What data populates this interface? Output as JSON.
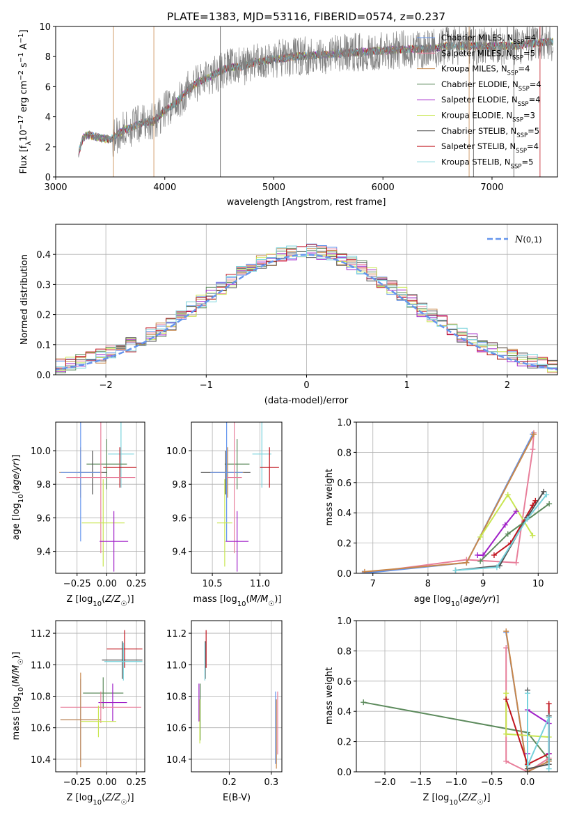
{
  "colors": [
    "#6495ed",
    "#e87f9b",
    "#c8874a",
    "#5c8a5c",
    "#a020c8",
    "#c8e650",
    "#505050",
    "#c0141e",
    "#78d2dc"
  ],
  "chart_data": [
    {
      "type": "line",
      "id": "spectrum",
      "title": "PLATE=1383, MJD=53116, FIBERID=0574, z=0.237",
      "xlabel": "wavelength [Angstrom, rest frame]",
      "ylabel_parts": [
        "Flux [f",
        "λ",
        "10",
        "−17",
        " erg cm",
        "−2",
        " s",
        "−1",
        " A",
        "−1",
        "]"
      ],
      "xlim": [
        3000,
        7600
      ],
      "ylim": [
        0,
        10
      ],
      "xticks": [
        "3000",
        "4000",
        "5000",
        "6000",
        "7000"
      ],
      "yticks": [
        "0",
        "2",
        "4",
        "6",
        "8",
        "10"
      ],
      "observed": {
        "wavelength": [
          3210,
          3250,
          3300,
          3400,
          3500,
          3600,
          3700,
          3800,
          3900,
          4000,
          4100,
          4200,
          4300,
          4400,
          4500,
          4600,
          4700,
          4800,
          4900,
          5000,
          5200,
          5400,
          5600,
          5800,
          6000,
          6200,
          6400,
          6600,
          6800,
          7000,
          7200,
          7400,
          7550
        ],
        "flux": [
          1.6,
          2.6,
          2.8,
          2.6,
          2.5,
          3.0,
          3.3,
          3.6,
          3.7,
          4.4,
          4.9,
          5.7,
          6.3,
          6.6,
          7.0,
          7.3,
          7.3,
          7.6,
          7.7,
          7.8,
          8.0,
          8.1,
          8.2,
          8.3,
          8.4,
          8.5,
          8.5,
          8.7,
          8.7,
          8.7,
          8.7,
          8.9,
          9.0
        ]
      },
      "series": [
        {
          "name": "Chabrier MILES, N",
          "sub": "SSP",
          "n": "=4"
        },
        {
          "name": "Salpeter MILES, N",
          "sub": "SSP",
          "n": "=5"
        },
        {
          "name": "Kroupa MILES, N",
          "sub": "SSP",
          "n": "=4"
        },
        {
          "name": "Chabrier ELODIE, N",
          "sub": "SSP",
          "n": "=4"
        },
        {
          "name": "Salpeter ELODIE, N",
          "sub": "SSP",
          "n": "=4"
        },
        {
          "name": "Kroupa ELODIE, N",
          "sub": "SSP",
          "n": "=3"
        },
        {
          "name": "Chabrier STELIB, N",
          "sub": "SSP",
          "n": "=5"
        },
        {
          "name": "Salpeter STELIB, N",
          "sub": "SSP",
          "n": "=4"
        },
        {
          "name": "Kroupa STELIB, N",
          "sub": "SSP",
          "n": "=5"
        }
      ],
      "legend": "top-right",
      "grid": false
    },
    {
      "type": "histogram",
      "id": "residuals",
      "xlabel": "(data-model)/error",
      "ylabel": "Normed distribution",
      "xlim": [
        -2.5,
        2.5
      ],
      "ylim": [
        0,
        0.5
      ],
      "xticks": [
        "−2",
        "−1",
        "0",
        "1",
        "2"
      ],
      "xtick_values": [
        -2,
        -1,
        0,
        1,
        2
      ],
      "yticks": [
        "0.0",
        "0.1",
        "0.2",
        "0.3",
        "0.4"
      ],
      "ytick_values": [
        0,
        0.1,
        0.2,
        0.3,
        0.4
      ],
      "bin_width": 0.1,
      "reference_curve": {
        "name": "N(0,1)",
        "mean": 0,
        "sigma": 1,
        "style": "dashed"
      },
      "legend": "top-right",
      "grid": true
    },
    {
      "type": "scatter",
      "id": "age-vs-Z",
      "xlabel": "Z [log10(Z/Z☉)]",
      "ylabel": "age [log10(age/yr)]",
      "xlim": [
        -0.43,
        0.32
      ],
      "ylim": [
        9.27,
        10.17
      ],
      "xticks": [
        "−0.25",
        "0.00",
        "0.25"
      ],
      "xtick_values": [
        -0.25,
        0,
        0.25
      ],
      "yticks": [
        "9.4",
        "9.6",
        "9.8",
        "10.0"
      ],
      "ytick_values": [
        9.4,
        9.6,
        9.8,
        10.0
      ],
      "points": [
        {
          "x": 0.12,
          "y": 9.98,
          "xerr": 0.11,
          "yerr": 0.2,
          "series": 8
        },
        {
          "x": 0.11,
          "y": 9.9,
          "xerr": 0.14,
          "yerr": 0.12,
          "series": 7
        },
        {
          "x": 0.0,
          "y": 9.92,
          "xerr": 0.17,
          "yerr": 0.15,
          "series": 3
        },
        {
          "x": -0.12,
          "y": 9.87,
          "xerr": 0.12,
          "yerr": 0.13,
          "series": 6
        },
        {
          "x": -0.22,
          "y": 9.87,
          "xerr": 0.18,
          "yerr": 0.15,
          "series": 2
        },
        {
          "x": -0.22,
          "y": 9.87,
          "xerr": 0.17,
          "yerr": 0.41,
          "series": 0
        },
        {
          "x": -0.05,
          "y": 9.84,
          "xerr": 0.29,
          "yerr": 0.45,
          "series": 1
        },
        {
          "x": -0.03,
          "y": 9.57,
          "xerr": 0.18,
          "yerr": 0.26,
          "series": 5
        },
        {
          "x": 0.06,
          "y": 9.46,
          "xerr": 0.12,
          "yerr": 0.18,
          "series": 4
        }
      ],
      "grid": true
    },
    {
      "type": "scatter",
      "id": "age-vs-mass",
      "xlabel": "mass [log10(M/M☉)]",
      "ylabel": "",
      "xlim": [
        10.28,
        11.23
      ],
      "ylim": [
        9.27,
        10.17
      ],
      "xticks": [
        "10.5",
        "11.0"
      ],
      "xtick_values": [
        10.5,
        11.0
      ],
      "yticks": [
        "9.4",
        "9.6",
        "9.8",
        "10.0"
      ],
      "ytick_values": [
        9.4,
        9.6,
        9.8,
        10.0
      ],
      "points": [
        {
          "x": 11.02,
          "y": 9.98,
          "xerr": 0.1,
          "yerr": 0.2,
          "series": 8
        },
        {
          "x": 11.1,
          "y": 9.9,
          "xerr": 0.1,
          "yerr": 0.12,
          "series": 7
        },
        {
          "x": 10.76,
          "y": 9.92,
          "xerr": 0.13,
          "yerr": 0.15,
          "series": 3
        },
        {
          "x": 10.64,
          "y": 9.87,
          "xerr": 0.26,
          "yerr": 0.13,
          "series": 6
        },
        {
          "x": 10.66,
          "y": 9.87,
          "xerr": 0.17,
          "yerr": 0.15,
          "series": 2
        },
        {
          "x": 10.65,
          "y": 9.87,
          "xerr": 0.17,
          "yerr": 0.41,
          "series": 0
        },
        {
          "x": 10.73,
          "y": 9.84,
          "xerr": 0.08,
          "yerr": 0.45,
          "series": 1
        },
        {
          "x": 10.63,
          "y": 9.57,
          "xerr": 0.08,
          "yerr": 0.26,
          "series": 5
        },
        {
          "x": 10.76,
          "y": 9.46,
          "xerr": 0.12,
          "yerr": 0.18,
          "series": 4
        }
      ],
      "grid": true
    },
    {
      "type": "line",
      "id": "mass-weight-vs-age",
      "xlabel": "age [log10(age/yr)]",
      "ylabel": "mass weight",
      "xlim": [
        6.7,
        10.35
      ],
      "ylim": [
        0,
        1
      ],
      "xticks": [
        "7",
        "8",
        "9",
        "10"
      ],
      "xtick_values": [
        7,
        8,
        9,
        10
      ],
      "yticks": [
        "0.0",
        "0.2",
        "0.4",
        "0.6",
        "0.8",
        "1.0"
      ],
      "ytick_values": [
        0,
        0.2,
        0.4,
        0.6,
        0.8,
        1.0
      ],
      "series": [
        {
          "series": 1,
          "x": [
            6.82,
            8.7,
            9.6,
            9.9,
            9.92
          ],
          "y": [
            0.0,
            0.09,
            0.07,
            0.82,
            0.93
          ]
        },
        {
          "series": 0,
          "x": [
            6.82,
            8.7,
            9.9
          ],
          "y": [
            0.0,
            0.07,
            0.92
          ]
        },
        {
          "series": 2,
          "x": [
            6.85,
            8.7,
            9.92
          ],
          "y": [
            0.01,
            0.07,
            0.92
          ]
        },
        {
          "series": 5,
          "x": [
            8.95,
            9.45,
            9.9
          ],
          "y": [
            0.24,
            0.52,
            0.25
          ]
        },
        {
          "series": 4,
          "x": [
            8.9,
            9.0,
            9.4,
            9.6
          ],
          "y": [
            0.12,
            0.12,
            0.32,
            0.41
          ]
        },
        {
          "series": 7,
          "x": [
            9.2,
            9.5,
            9.9,
            9.95
          ],
          "y": [
            0.12,
            0.2,
            0.45,
            0.48
          ]
        },
        {
          "series": 3,
          "x": [
            8.95,
            9.45,
            10.2
          ],
          "y": [
            0.08,
            0.26,
            0.46
          ]
        },
        {
          "series": 6,
          "x": [
            8.5,
            9.3,
            9.8,
            10.1
          ],
          "y": [
            0.02,
            0.05,
            0.37,
            0.54
          ]
        },
        {
          "series": 8,
          "x": [
            8.5,
            9.25,
            9.8,
            10.15
          ],
          "y": [
            0.02,
            0.04,
            0.36,
            0.52
          ]
        }
      ],
      "grid": true
    },
    {
      "type": "scatter",
      "id": "mass-vs-Z",
      "xlabel": "Z [log10(Z/Z☉)]",
      "ylabel": "mass [log10(M/M☉)]",
      "xlim": [
        -0.43,
        0.32
      ],
      "ylim": [
        10.32,
        11.28
      ],
      "xticks": [
        "−0.25",
        "0.00",
        "0.25"
      ],
      "xtick_values": [
        -0.25,
        0,
        0.25
      ],
      "yticks": [
        "10.4",
        "10.6",
        "10.8",
        "11.0",
        "11.2"
      ],
      "ytick_values": [
        10.4,
        10.6,
        10.8,
        11.0,
        11.2
      ],
      "points": [
        {
          "x": 0.15,
          "y": 11.1,
          "xerr": 0.15,
          "yerr": 0.12,
          "series": 7
        },
        {
          "x": 0.13,
          "y": 11.03,
          "xerr": 0.17,
          "yerr": 0.12,
          "series": 6
        },
        {
          "x": 0.14,
          "y": 11.02,
          "xerr": 0.16,
          "yerr": 0.12,
          "series": 8
        },
        {
          "x": -0.03,
          "y": 10.82,
          "xerr": 0.17,
          "yerr": 0.1,
          "series": 3
        },
        {
          "x": 0.05,
          "y": 10.76,
          "xerr": 0.12,
          "yerr": 0.12,
          "series": 4
        },
        {
          "x": -0.05,
          "y": 10.73,
          "xerr": 0.34,
          "yerr": 0.1,
          "series": 1
        },
        {
          "x": -0.22,
          "y": 10.65,
          "xerr": 0.17,
          "yerr": 0.26,
          "series": 0
        },
        {
          "x": -0.22,
          "y": 10.65,
          "xerr": 0.17,
          "yerr": 0.3,
          "series": 2
        },
        {
          "x": -0.07,
          "y": 10.64,
          "xerr": 0.15,
          "yerr": 0.1,
          "series": 5
        }
      ],
      "grid": true
    },
    {
      "type": "scatter",
      "id": "mass-vs-EBV",
      "xlabel": "E(B-V)",
      "ylabel": "",
      "xlim": [
        0.11,
        0.325
      ],
      "ylim": [
        10.32,
        11.28
      ],
      "xticks": [
        "0.2",
        "0.3"
      ],
      "xtick_values": [
        0.2,
        0.3
      ],
      "yticks": [
        "10.4",
        "10.6",
        "10.8",
        "11.0",
        "11.2"
      ],
      "ytick_values": [
        10.4,
        10.6,
        10.8,
        11.0,
        11.2
      ],
      "points": [
        {
          "x": 0.145,
          "y": 11.1,
          "xerr": 0,
          "yerr": 0.12,
          "series": 7
        },
        {
          "x": 0.143,
          "y": 11.03,
          "xerr": 0,
          "yerr": 0.12,
          "series": 6
        },
        {
          "x": 0.142,
          "y": 11.02,
          "xerr": 0,
          "yerr": 0.12,
          "series": 8
        },
        {
          "x": 0.128,
          "y": 10.76,
          "xerr": 0,
          "yerr": 0.12,
          "series": 4
        },
        {
          "x": 0.131,
          "y": 10.7,
          "xerr": 0,
          "yerr": 0.18,
          "series": 3
        },
        {
          "x": 0.13,
          "y": 10.64,
          "xerr": 0,
          "yerr": 0.14,
          "series": 5
        },
        {
          "x": 0.31,
          "y": 10.6,
          "xerr": 0,
          "yerr": 0.23,
          "series": 0
        },
        {
          "x": 0.312,
          "y": 10.56,
          "xerr": 0,
          "yerr": 0.22,
          "series": 2
        },
        {
          "x": 0.315,
          "y": 10.63,
          "xerr": 0,
          "yerr": 0.2,
          "series": 1
        }
      ],
      "grid": true
    },
    {
      "type": "line",
      "id": "mass-weight-vs-Z",
      "xlabel": "Z [log10(Z/Z☉)]",
      "ylabel": "mass weight",
      "xlim": [
        -2.4,
        0.42
      ],
      "ylim": [
        0,
        1
      ],
      "xticks": [
        "−2.0",
        "−1.5",
        "−1.0",
        "−0.5",
        "0.0"
      ],
      "xtick_values": [
        -2,
        -1.5,
        -1,
        -0.5,
        0
      ],
      "yticks": [
        "0.0",
        "0.2",
        "0.4",
        "0.6",
        "0.8",
        "1.0"
      ],
      "ytick_values": [
        0,
        0.2,
        0.4,
        0.6,
        0.8,
        1.0
      ],
      "series": [
        {
          "series": 3,
          "x": [
            -2.3,
            0.0,
            0.3
          ],
          "y": [
            0.46,
            0.26,
            0.08
          ]
        },
        {
          "series": 1,
          "x": [
            -0.3,
            -0.3,
            0.0,
            0.3
          ],
          "y": [
            0.82,
            0.07,
            0.0,
            0.09
          ]
        },
        {
          "series": 0,
          "x": [
            -0.3,
            0.0,
            0.3
          ],
          "y": [
            0.92,
            0.0,
            0.07
          ]
        },
        {
          "series": 2,
          "x": [
            -0.3,
            0.0,
            0.3
          ],
          "y": [
            0.93,
            0.0,
            0.07
          ]
        },
        {
          "series": 5,
          "x": [
            -0.3,
            -0.3,
            0.3
          ],
          "y": [
            0.52,
            0.25,
            0.23
          ]
        },
        {
          "series": 7,
          "x": [
            -0.3,
            0.0,
            0.3,
            0.3
          ],
          "y": [
            0.48,
            0.05,
            0.12,
            0.45
          ]
        },
        {
          "series": 4,
          "x": [
            0.0,
            0.0,
            0.3,
            0.3
          ],
          "y": [
            0.12,
            0.41,
            0.32,
            0.12
          ]
        },
        {
          "series": 6,
          "x": [
            0.0,
            0.0,
            0.3,
            0.3
          ],
          "y": [
            0.54,
            0.02,
            0.05,
            0.37
          ]
        },
        {
          "series": 8,
          "x": [
            0.0,
            0.0,
            0.3,
            0.3
          ],
          "y": [
            0.52,
            0.04,
            0.36,
            0.02
          ]
        }
      ],
      "grid": true
    }
  ]
}
